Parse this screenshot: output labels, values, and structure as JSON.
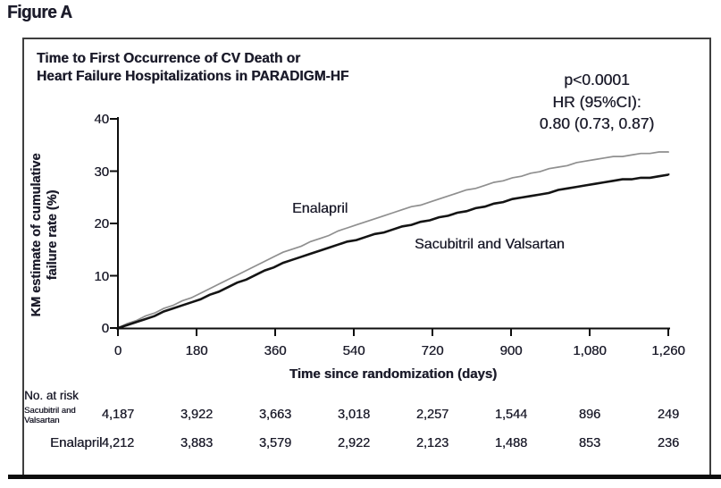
{
  "figure_label": "Figure A",
  "chart": {
    "title_lines": [
      "Time to First Occurrence of CV Death or",
      "Heart Failure Hospitalizations in PARADIGM-HF"
    ],
    "stats": {
      "p_value": "p<0.0001",
      "hr_label": "HR (95%CI):",
      "hr_value": "0.80 (0.73, 0.87)"
    },
    "ylabel_lines": [
      "KM estimate of cumulative",
      "failure rate (%)"
    ],
    "xlabel": "Time since randomization (days)"
  },
  "chart_data": {
    "type": "line",
    "title": "Time to First Occurrence of CV Death or Heart Failure Hospitalizations in PARADIGM-HF",
    "xlabel": "Time since randomization (days)",
    "ylabel": "KM estimate of cumulative failure rate (%)",
    "xlim": [
      0,
      1260
    ],
    "ylim": [
      0,
      40
    ],
    "grid": false,
    "x_ticks": [
      0,
      180,
      360,
      540,
      720,
      900,
      1080,
      1260
    ],
    "x_tick_labels": [
      "0",
      "180",
      "360",
      "540",
      "720",
      "900",
      "1,080",
      "1,260"
    ],
    "y_ticks": [
      0,
      10,
      20,
      30,
      40
    ],
    "annotation": [
      "p<0.0001",
      "HR (95%CI):",
      "0.80 (0.73, 0.87)"
    ],
    "series": [
      {
        "name": "Enalapril",
        "color": "#8f8f8f",
        "stroke_width": 1.7,
        "x": [
          0,
          90,
          180,
          270,
          360,
          450,
          540,
          630,
          720,
          810,
          900,
          990,
          1080,
          1170,
          1260
        ],
        "y": [
          0,
          3.1,
          6.2,
          10.0,
          13.8,
          16.8,
          19.6,
          22.0,
          24.3,
          26.6,
          28.6,
          30.5,
          32.0,
          33.1,
          33.8
        ]
      },
      {
        "name": "Sacubitril and Valsartan",
        "color": "#141414",
        "stroke_width": 2.6,
        "x": [
          0,
          90,
          180,
          270,
          360,
          450,
          540,
          630,
          720,
          810,
          900,
          990,
          1080,
          1170,
          1260
        ],
        "y": [
          0,
          2.6,
          5.2,
          8.5,
          11.8,
          14.4,
          16.8,
          18.9,
          20.8,
          22.7,
          24.5,
          26.0,
          27.4,
          28.5,
          29.2
        ]
      }
    ]
  },
  "risk_table": {
    "header": "No. at risk",
    "rows": [
      {
        "label_lines": [
          "Sacubitril and",
          "Valsartan"
        ],
        "values": [
          "4,187",
          "3,922",
          "3,663",
          "3,018",
          "2,257",
          "1,544",
          "896",
          "249"
        ]
      },
      {
        "label_lines": [
          "Enalapril"
        ],
        "values": [
          "4,212",
          "3,883",
          "3,579",
          "2,922",
          "2,123",
          "1,488",
          "853",
          "236"
        ]
      }
    ]
  }
}
